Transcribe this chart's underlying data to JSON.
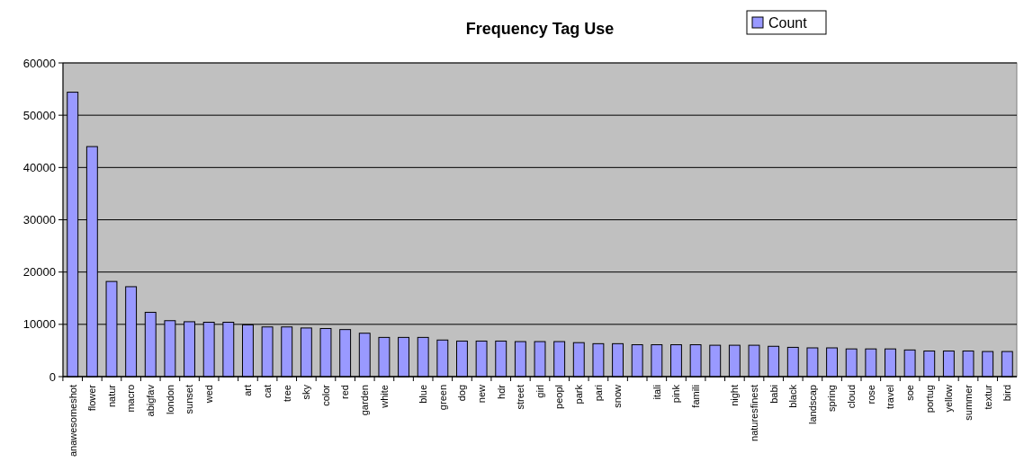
{
  "chart_data": {
    "type": "bar",
    "title": "Frequency Tag Use",
    "categories": [
      "anawesomeshot",
      "flower",
      "natur",
      "macro",
      "abigfav",
      "london",
      "sunset",
      "wed",
      null,
      "art",
      "cat",
      "tree",
      "sky",
      "color",
      "red",
      "garden",
      "white",
      null,
      "blue",
      "green",
      "dog",
      "new",
      "hdr",
      "street",
      "girl",
      "peopl",
      "park",
      "pari",
      "snow",
      null,
      "itali",
      "pink",
      "famili",
      null,
      "night",
      "naturesfinest",
      "babi",
      "black",
      "landscap",
      "spring",
      "cloud",
      "rose",
      "travel",
      "soe",
      "portug",
      "yellow",
      "summer",
      "textur",
      "bird"
    ],
    "series": [
      {
        "name": "Count",
        "color": "#9999ff",
        "values": [
          54400,
          44000,
          18200,
          17200,
          12300,
          10700,
          10500,
          10400,
          10400,
          9900,
          9500,
          9500,
          9300,
          9200,
          9000,
          8300,
          7500,
          7500,
          7500,
          7000,
          6800,
          6800,
          6800,
          6700,
          6700,
          6700,
          6500,
          6300,
          6300,
          6100,
          6100,
          6100,
          6100,
          6000,
          6000,
          6000,
          5800,
          5600,
          5500,
          5500,
          5300,
          5300,
          5300,
          5100,
          4900,
          4900,
          4900,
          4800,
          4800
        ]
      }
    ],
    "ylim": [
      0,
      60000
    ],
    "yticks": [
      0,
      10000,
      20000,
      30000,
      40000,
      50000,
      60000
    ],
    "grid": "y",
    "legend": "top right"
  }
}
